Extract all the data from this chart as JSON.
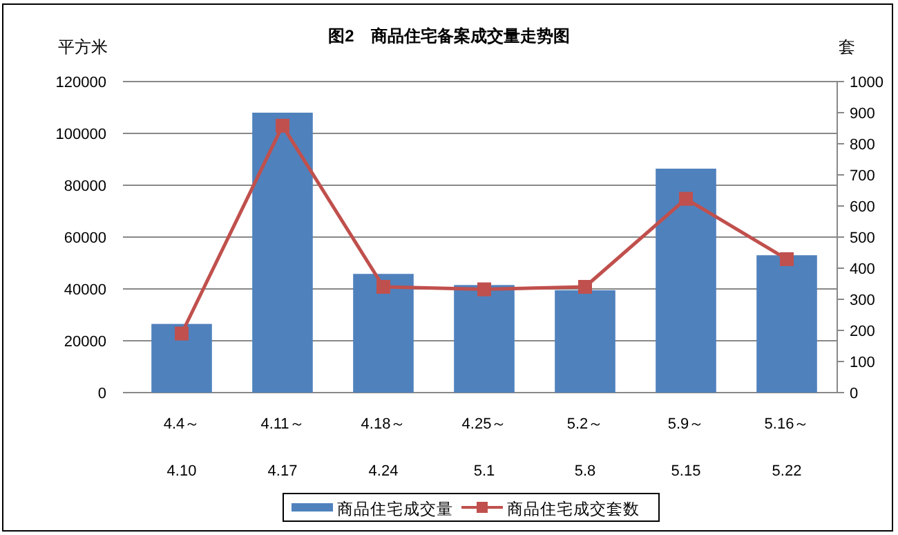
{
  "chart_data": {
    "type": "bar",
    "title": "图2　商品住宅备案成交量走势图",
    "ylabel": "平方米",
    "y2label": "套",
    "categories": [
      "4.4～\n4.10",
      "4.11～\n4.17",
      "4.18～\n4.24",
      "4.25～\n5.1",
      "5.2～\n5.8",
      "5.9～\n5.15",
      "5.16～\n5.22"
    ],
    "series": [
      {
        "name": "商品住宅成交量",
        "color": "#4f81bd",
        "values": [
          26500,
          108000,
          45800,
          41500,
          39500,
          86400,
          53000
        ]
      },
      {
        "name": "商品住宅成交套数",
        "type": "line",
        "axis": "y2",
        "color": "#c0504d",
        "marker": "square",
        "values": [
          190,
          858,
          340,
          332,
          340,
          623,
          429
        ]
      }
    ],
    "ylim": [
      0,
      120000
    ],
    "yticks": [
      0,
      20000,
      40000,
      60000,
      80000,
      100000,
      120000
    ],
    "y2lim": [
      0,
      1000
    ],
    "y2ticks": [
      0,
      100,
      200,
      300,
      400,
      500,
      600,
      700,
      800,
      900,
      1000
    ],
    "grid": "y",
    "legend": "bottom"
  }
}
